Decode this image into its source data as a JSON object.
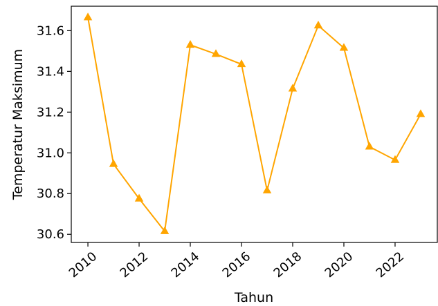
{
  "chart_data": {
    "type": "line",
    "title": "",
    "xlabel": "Tahun",
    "ylabel": "Temperatur Maksimum",
    "x": [
      2010,
      2011,
      2012,
      2013,
      2014,
      2015,
      2016,
      2017,
      2018,
      2019,
      2020,
      2021,
      2022,
      2023
    ],
    "series": [
      {
        "values": [
          31.665,
          30.945,
          30.775,
          30.615,
          31.53,
          31.485,
          31.435,
          30.815,
          31.315,
          31.625,
          31.515,
          31.03,
          30.965,
          31.19
        ],
        "color": "#FFA500",
        "marker": "triangle-up"
      }
    ],
    "xlim": [
      2009.35,
      2023.65
    ],
    "ylim": [
      30.56,
      31.72
    ],
    "xticks": [
      "2010",
      "2012",
      "2014",
      "2016",
      "2018",
      "2020",
      "2022"
    ],
    "yticks": [
      "30.6",
      "30.8",
      "31.0",
      "31.2",
      "31.4",
      "31.6"
    ],
    "grid": false,
    "legend": "none"
  }
}
